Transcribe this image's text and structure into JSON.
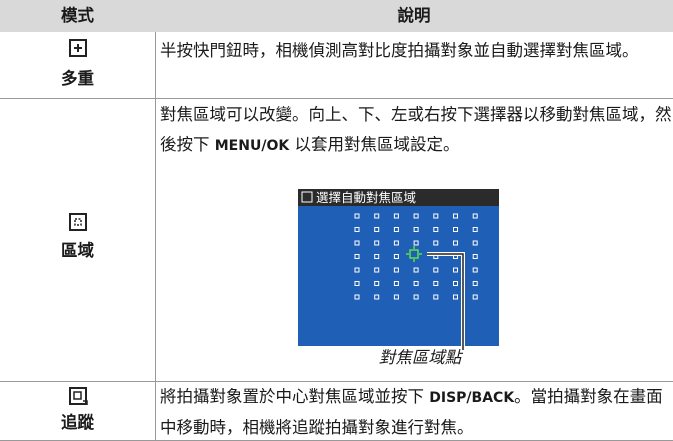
{
  "table": {
    "header": [
      "模式",
      "說明"
    ],
    "rows": [
      {
        "mode": "多重",
        "description": [
          "半按快門鈕時，相機偵測高對比度拍攝對象並自動選擇對焦區域。"
        ]
      },
      {
        "mode": "區域",
        "description": [
          "對焦區域可以改變。向上、下、左或右按下選擇器以移動對焦區域，然後按下 ",
          "MENU/OK",
          " 以套用對焦區域設定。"
        ],
        "screen_title": "選擇自動對焦區域",
        "caption": "對焦區域點"
      },
      {
        "mode": "追蹤",
        "description": [
          "將拍攝對象置於中心對焦區域並按下 ",
          "DISP/BACK",
          "。當拍攝對象在畫面中移動時，相機將追蹤拍攝對象進行對焦。"
        ]
      }
    ]
  }
}
